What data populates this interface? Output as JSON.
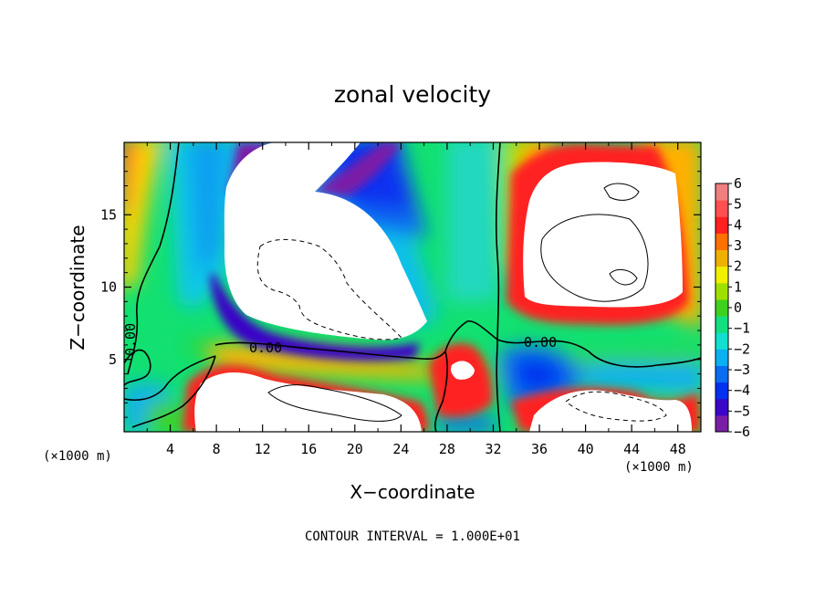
{
  "chart_data": {
    "type": "heatmap",
    "title": "zonal velocity",
    "xlabel": "X−coordinate",
    "ylabel": "Z−coordinate",
    "x_unit": "(×1000 m)",
    "y_unit": "(×1000 m)",
    "xlim": [
      0,
      50
    ],
    "ylim": [
      0,
      20
    ],
    "x_ticks": [
      "4",
      "8",
      "12",
      "16",
      "20",
      "24",
      "28",
      "32",
      "36",
      "40",
      "44",
      "48"
    ],
    "y_ticks": [
      "5",
      "10",
      "15"
    ],
    "colorbar": {
      "ticks": [
        "6",
        "5",
        "4",
        "3",
        "2",
        "1",
        "0",
        "−1",
        "−2",
        "−3",
        "−4",
        "−5",
        "−6"
      ],
      "range": [
        -6,
        6
      ],
      "colors": [
        "#7a1ea8",
        "#3a06c8",
        "#0030f0",
        "#0a6cf0",
        "#0ab0f0",
        "#10e0d0",
        "#12e080",
        "#40d020",
        "#a0e000",
        "#f0f000",
        "#f0b000",
        "#ff7000",
        "#ff2020",
        "#ff5050",
        "#f08080"
      ]
    },
    "contour_labels": [
      "0.00",
      "0.00",
      "0.00"
    ],
    "note": "CONTOUR INTERVAL = 1.000E+01"
  }
}
